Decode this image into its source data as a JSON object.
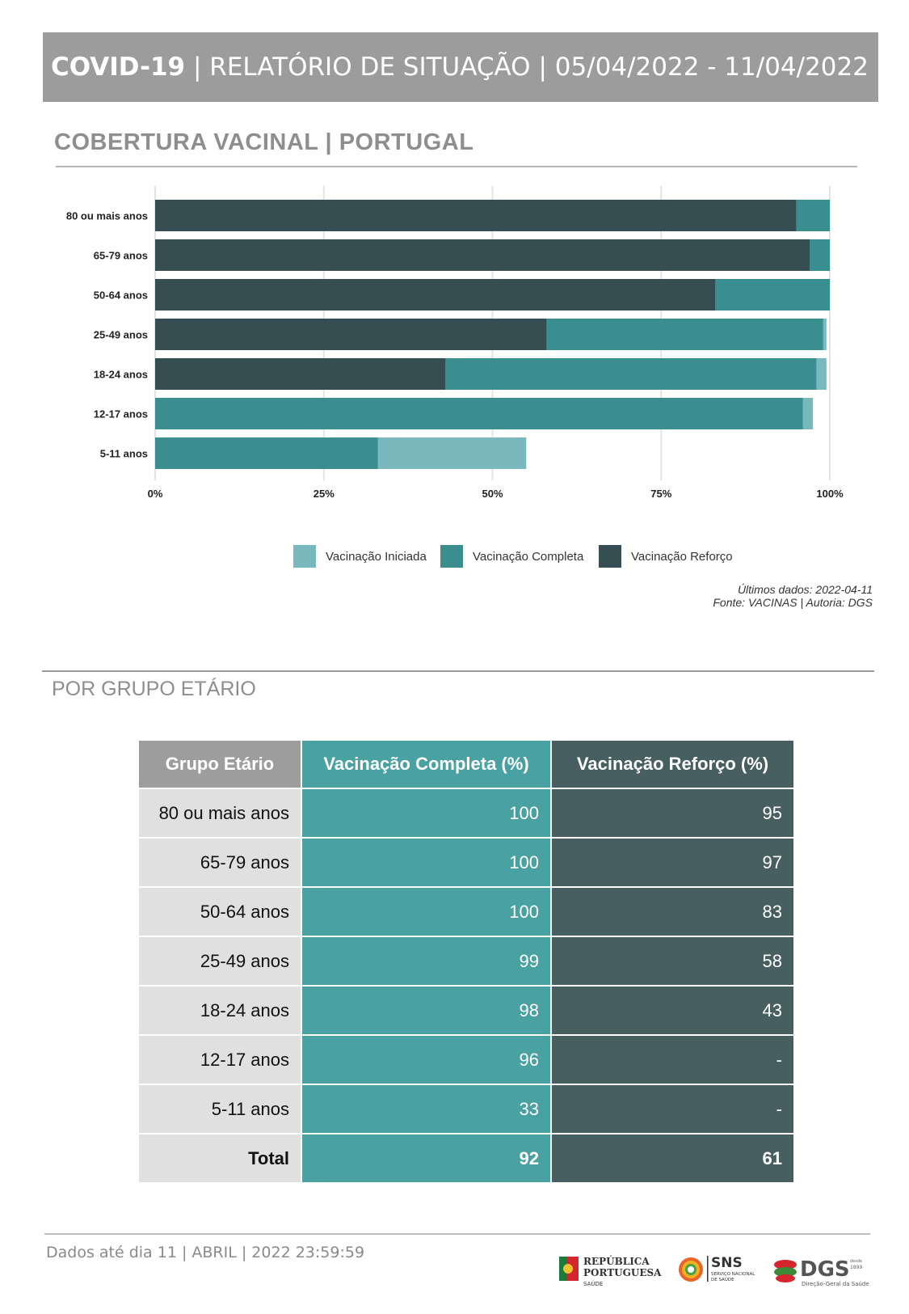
{
  "header": {
    "title_bold": "COVID-19",
    "title_rest": " | RELATÓRIO DE SITUAÇÃO | 05/04/2022 - 11/04/2022"
  },
  "section1": {
    "title": "COBERTURA VACINAL | PORTUGAL"
  },
  "chart_data": {
    "type": "bar",
    "orientation": "horizontal",
    "stacked": false,
    "title": "",
    "xlabel": "",
    "ylabel": "",
    "categories": [
      "80 ou mais anos",
      "65-79 anos",
      "50-64 anos",
      "25-49 anos",
      "18-24 anos",
      "12-17 anos",
      "5-11 anos"
    ],
    "series": [
      {
        "name": "Vacinação Iniciada",
        "color": "#79b8bc",
        "values": [
          100,
          100,
          100,
          99.5,
          99.5,
          97.5,
          55
        ]
      },
      {
        "name": "Vacinação Completa",
        "color": "#3a8e90",
        "values": [
          100,
          100,
          100,
          99,
          98,
          96,
          33
        ]
      },
      {
        "name": "Vacinação Reforço",
        "color": "#344e51",
        "values": [
          95,
          97,
          83,
          58,
          43,
          0,
          0
        ]
      }
    ],
    "xticks": [
      "0%",
      "25%",
      "50%",
      "75%",
      "100%"
    ],
    "xlim": [
      0,
      100
    ],
    "grid": true,
    "legend_position": "bottom"
  },
  "legend": [
    {
      "label": "Vacinação Iniciada",
      "color": "#79b8bc"
    },
    {
      "label": "Vacinação Completa",
      "color": "#3a8e90"
    },
    {
      "label": "Vacinação Reforço",
      "color": "#344e51"
    }
  ],
  "source": {
    "line1": "Últimos dados: 2022-04-11",
    "line2": "Fonte: VACINAS | Autoria: DGS"
  },
  "section2": {
    "title": "POR GRUPO ETÁRIO"
  },
  "table": {
    "headers": [
      "Grupo Etário",
      "Vacinação Completa (%)",
      "Vacinação Reforço (%)"
    ],
    "rows": [
      [
        "80 ou mais anos",
        "100",
        "95"
      ],
      [
        "65-79 anos",
        "100",
        "97"
      ],
      [
        "50-64 anos",
        "100",
        "83"
      ],
      [
        "25-49 anos",
        "99",
        "58"
      ],
      [
        "18-24 anos",
        "98",
        "43"
      ],
      [
        "12-17 anos",
        "96",
        "-"
      ],
      [
        "5-11 anos",
        "33",
        "-"
      ]
    ],
    "total": [
      "Total",
      "92",
      "61"
    ]
  },
  "footer": {
    "text": "Dados até dia 11 | ABRIL | 2022 23:59:59"
  },
  "logos": {
    "republica_line1": "REPÚBLICA",
    "republica_line2": "PORTUGUESA",
    "republica_line3": "SAÚDE",
    "sns": "SNS",
    "sns_sub1": "SERVIÇO NACIONAL",
    "sns_sub2": "DE SAÚDE",
    "dgs": "DGS",
    "dgs_since1": "desde",
    "dgs_since2": "1899",
    "dgs_sub": "Direção-Geral da Saúde"
  }
}
